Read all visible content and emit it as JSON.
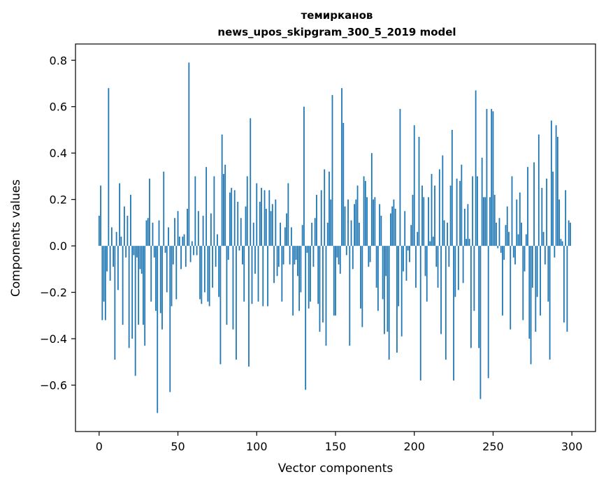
{
  "chart_data": {
    "type": "bar",
    "title_line1": "темирканов",
    "title_line2": "news_upos_skipgram_300_5_2019 model",
    "xlabel": "Vector components",
    "ylabel": "Components values",
    "xlim": [
      -15,
      315
    ],
    "ylim": [
      -0.8,
      0.87
    ],
    "xticks": [
      0,
      50,
      100,
      150,
      200,
      250,
      300
    ],
    "xtick_labels": [
      "0",
      "50",
      "100",
      "150",
      "200",
      "250",
      "300"
    ],
    "yticks": [
      -0.6,
      -0.4,
      -0.2,
      0.0,
      0.2,
      0.4,
      0.6,
      0.8
    ],
    "ytick_labels": [
      "−0.6",
      "−0.4",
      "−0.2",
      "0.0",
      "0.2",
      "0.4",
      "0.6",
      "0.8"
    ],
    "bar_color": "#1f77b4",
    "grid": false,
    "values": [
      0.13,
      0.26,
      -0.32,
      -0.24,
      -0.32,
      -0.11,
      0.68,
      -0.15,
      0.08,
      -0.09,
      -0.49,
      0.06,
      -0.19,
      0.27,
      0.04,
      -0.34,
      0.17,
      -0.05,
      0.13,
      -0.44,
      0.22,
      -0.4,
      -0.04,
      -0.56,
      -0.05,
      -0.34,
      -0.1,
      -0.12,
      -0.34,
      -0.43,
      0.11,
      0.12,
      0.29,
      -0.24,
      0.1,
      -0.05,
      -0.28,
      -0.72,
      0.11,
      -0.29,
      -0.36,
      0.32,
      -0.03,
      -0.2,
      0.08,
      -0.63,
      -0.26,
      -0.08,
      0.12,
      -0.23,
      0.15,
      0.04,
      -0.1,
      0.04,
      0.05,
      -0.09,
      0.16,
      0.79,
      -0.07,
      0.02,
      -0.04,
      0.3,
      -0.04,
      0.15,
      -0.23,
      -0.25,
      0.13,
      -0.2,
      0.34,
      -0.24,
      -0.26,
      0.14,
      -0.18,
      0.3,
      -0.09,
      0.05,
      -0.22,
      -0.51,
      0.48,
      0.31,
      0.35,
      -0.34,
      -0.06,
      0.23,
      0.25,
      -0.36,
      0.24,
      -0.49,
      0.19,
      -0.02,
      0.12,
      -0.08,
      -0.24,
      0.17,
      0.3,
      -0.52,
      0.55,
      -0.25,
      0.1,
      -0.12,
      0.27,
      -0.24,
      0.19,
      0.25,
      -0.26,
      0.24,
      0.16,
      -0.26,
      0.24,
      0.15,
      0.18,
      -0.16,
      0.2,
      -0.13,
      -0.09,
      0.1,
      -0.24,
      -0.08,
      0.08,
      0.14,
      0.27,
      -0.08,
      0.08,
      -0.3,
      -0.08,
      -0.06,
      -0.13,
      -0.28,
      -0.2,
      0.09,
      0.6,
      -0.62,
      -0.03,
      -0.27,
      -0.24,
      0.1,
      -0.09,
      0.12,
      0.22,
      -0.25,
      -0.37,
      0.24,
      -0.33,
      0.33,
      -0.43,
      0.1,
      0.32,
      0.2,
      0.65,
      -0.3,
      -0.3,
      -0.05,
      -0.08,
      -0.12,
      0.68,
      0.53,
      0.17,
      -0.04,
      0.2,
      -0.43,
      0.11,
      -0.1,
      0.18,
      0.2,
      0.26,
      0.1,
      -0.27,
      -0.35,
      0.3,
      0.28,
      0.21,
      -0.09,
      -0.07,
      0.4,
      0.2,
      0.21,
      -0.18,
      -0.28,
      0.18,
      0.13,
      -0.23,
      -0.38,
      -0.13,
      -0.37,
      -0.49,
      0.14,
      0.17,
      0.2,
      0.16,
      -0.46,
      -0.26,
      0.59,
      -0.39,
      -0.11,
      0.15,
      -0.15,
      -0.02,
      -0.07,
      0.09,
      0.22,
      0.52,
      -0.18,
      0.06,
      0.47,
      -0.58,
      0.26,
      0.21,
      -0.13,
      -0.24,
      0.21,
      0.02,
      0.31,
      0.04,
      0.26,
      -0.09,
      -0.18,
      0.33,
      -0.38,
      0.39,
      0.11,
      -0.49,
      0.1,
      -0.09,
      0.26,
      0.5,
      -0.58,
      -0.22,
      0.29,
      -0.19,
      0.28,
      0.35,
      -0.16,
      0.16,
      0.03,
      0.18,
      0.03,
      -0.44,
      0.3,
      -0.28,
      0.67,
      0.3,
      -0.44,
      -0.66,
      0.38,
      0.21,
      0.21,
      0.59,
      -0.57,
      0.21,
      0.59,
      0.58,
      0.22,
      0.1,
      -0.01,
      0.12,
      -0.03,
      -0.3,
      -0.06,
      0.09,
      0.17,
      0.06,
      -0.36,
      0.3,
      -0.05,
      -0.08,
      0.2,
      0.05,
      0.23,
      0.1,
      -0.32,
      -0.11,
      0.05,
      0.34,
      -0.4,
      -0.51,
      -0.18,
      0.36,
      -0.37,
      -0.22,
      0.48,
      -0.3,
      0.25,
      0.06,
      -0.08,
      0.29,
      -0.24,
      -0.49,
      0.54,
      0.32,
      -0.05,
      0.52,
      0.47,
      0.2,
      0.03,
      0.02,
      -0.33,
      0.24,
      -0.37,
      0.11,
      0.1
    ]
  }
}
